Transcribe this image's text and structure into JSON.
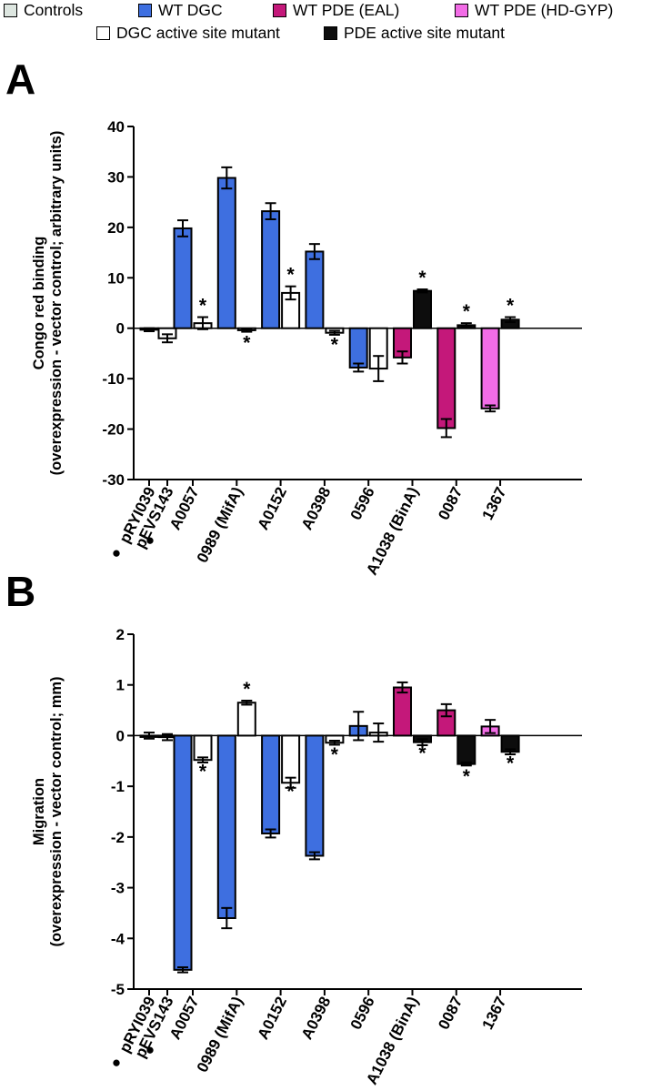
{
  "legend": [
    {
      "label": "Controls",
      "color": "#dde6e0"
    },
    {
      "label": "WT DGC",
      "color": "#3e6fe0"
    },
    {
      "label": "WT PDE (EAL)",
      "color": "#c4187a"
    },
    {
      "label": "WT PDE (HD-GYP)",
      "color": "#f26ce6"
    },
    {
      "label": "DGC active site mutant",
      "color": "#ffffff"
    },
    {
      "label": "PDE active site mutant",
      "color": "#0d0d0d"
    }
  ],
  "colors": {
    "control": "#dde6e0",
    "wt_dgc": "#3e6fe0",
    "wt_pde_eal": "#c4187a",
    "wt_pde_hdgyp": "#f26ce6",
    "dgc_mutant": "#ffffff",
    "pde_mutant": "#0d0d0d"
  },
  "chart_data": [
    {
      "panel": "A",
      "type": "bar",
      "ylabel_line1": "Congo red binding",
      "ylabel_line2": "(overexpression - vector control; arbitrary units)",
      "ylim": [
        -30,
        40
      ],
      "yticks": [
        -30,
        -20,
        -10,
        0,
        10,
        20,
        30,
        40
      ],
      "categories": [
        "pRYI039",
        "pEVS143",
        "A0057",
        "0989 (MifA)",
        "A0152",
        "A0398",
        "0596",
        "A1038 (BinA)",
        "0087",
        "1367"
      ],
      "control_markers": [
        "●",
        "●"
      ],
      "bars": [
        {
          "category": "pRYI039",
          "kind": "control",
          "value": -0.3,
          "error": 0.3,
          "star": false
        },
        {
          "category": "pEVS143",
          "kind": "dgc_mutant",
          "value": -2.0,
          "error": 0.8,
          "star": false
        },
        {
          "category": "A0057",
          "kind": "wt_dgc",
          "value": 19.8,
          "error": 1.6,
          "star": false
        },
        {
          "category": "A0057",
          "kind": "dgc_mutant",
          "value": 1.0,
          "error": 1.2,
          "star": true
        },
        {
          "category": "0989 (MifA)",
          "kind": "wt_dgc",
          "value": 29.8,
          "error": 2.1,
          "star": false
        },
        {
          "category": "0989 (MifA)",
          "kind": "dgc_mutant",
          "value": -0.4,
          "error": 0.3,
          "star": true
        },
        {
          "category": "A0152",
          "kind": "wt_dgc",
          "value": 23.2,
          "error": 1.6,
          "star": false
        },
        {
          "category": "A0152",
          "kind": "dgc_mutant",
          "value": 7.0,
          "error": 1.3,
          "star": true
        },
        {
          "category": "A0398",
          "kind": "wt_dgc",
          "value": 15.2,
          "error": 1.5,
          "star": false
        },
        {
          "category": "A0398",
          "kind": "dgc_mutant",
          "value": -0.9,
          "error": 0.4,
          "star": true
        },
        {
          "category": "0596",
          "kind": "wt_dgc",
          "value": -7.8,
          "error": 0.8,
          "star": false
        },
        {
          "category": "0596",
          "kind": "dgc_mutant",
          "value": -8.0,
          "error": 2.5,
          "star": false
        },
        {
          "category": "A1038 (BinA)",
          "kind": "wt_pde_eal",
          "value": -5.8,
          "error": 1.2,
          "star": false
        },
        {
          "category": "A1038 (BinA)",
          "kind": "pde_mutant",
          "value": 7.4,
          "error": 0.3,
          "star": true
        },
        {
          "category": "0087",
          "kind": "wt_pde_eal",
          "value": -19.8,
          "error": 1.8,
          "star": false
        },
        {
          "category": "0087",
          "kind": "pde_mutant",
          "value": 0.6,
          "error": 0.4,
          "star": true
        },
        {
          "category": "1367",
          "kind": "wt_pde_hdgyp",
          "value": -15.9,
          "error": 0.6,
          "star": false
        },
        {
          "category": "1367",
          "kind": "pde_mutant",
          "value": 1.7,
          "error": 0.5,
          "star": true
        }
      ]
    },
    {
      "panel": "B",
      "type": "bar",
      "ylabel_line1": "Migration",
      "ylabel_line2": "(overexpression - vector control; mm)",
      "ylim": [
        -5,
        2
      ],
      "yticks": [
        -5,
        -4,
        -3,
        -2,
        -1,
        0,
        1,
        2
      ],
      "categories": [
        "pRYI039",
        "pEVS143",
        "A0057",
        "0989 (MifA)",
        "A0152",
        "A0398",
        "0596",
        "A1038 (BinA)",
        "0087",
        "1367"
      ],
      "control_markers": [
        "●",
        "●"
      ],
      "bars": [
        {
          "category": "pRYI039",
          "kind": "control",
          "value": 0.0,
          "error": 0.06,
          "star": false
        },
        {
          "category": "pEVS143",
          "kind": "dgc_mutant",
          "value": -0.03,
          "error": 0.06,
          "star": false
        },
        {
          "category": "A0057",
          "kind": "wt_dgc",
          "value": -4.62,
          "error": 0.05,
          "star": false
        },
        {
          "category": "A0057",
          "kind": "dgc_mutant",
          "value": -0.48,
          "error": 0.05,
          "star": true
        },
        {
          "category": "0989 (MifA)",
          "kind": "wt_dgc",
          "value": -3.6,
          "error": 0.2,
          "star": false
        },
        {
          "category": "0989 (MifA)",
          "kind": "dgc_mutant",
          "value": 0.65,
          "error": 0.04,
          "star": true
        },
        {
          "category": "A0152",
          "kind": "wt_dgc",
          "value": -1.93,
          "error": 0.08,
          "star": false
        },
        {
          "category": "A0152",
          "kind": "dgc_mutant",
          "value": -0.93,
          "error": 0.1,
          "star": true
        },
        {
          "category": "A0398",
          "kind": "wt_dgc",
          "value": -2.37,
          "error": 0.07,
          "star": false
        },
        {
          "category": "A0398",
          "kind": "dgc_mutant",
          "value": -0.14,
          "error": 0.04,
          "star": true
        },
        {
          "category": "0596",
          "kind": "wt_dgc",
          "value": 0.19,
          "error": 0.28,
          "star": false
        },
        {
          "category": "0596",
          "kind": "dgc_mutant",
          "value": 0.06,
          "error": 0.18,
          "star": false
        },
        {
          "category": "A1038 (BinA)",
          "kind": "wt_pde_eal",
          "value": 0.95,
          "error": 0.1,
          "star": false
        },
        {
          "category": "A1038 (BinA)",
          "kind": "pde_mutant",
          "value": -0.13,
          "error": 0.06,
          "star": true
        },
        {
          "category": "0087",
          "kind": "wt_pde_eal",
          "value": 0.5,
          "error": 0.12,
          "star": false
        },
        {
          "category": "0087",
          "kind": "pde_mutant",
          "value": -0.56,
          "error": 0.03,
          "star": true
        },
        {
          "category": "1367",
          "kind": "wt_pde_hdgyp",
          "value": 0.18,
          "error": 0.13,
          "star": false
        },
        {
          "category": "1367",
          "kind": "pde_mutant",
          "value": -0.32,
          "error": 0.05,
          "star": true
        }
      ]
    }
  ]
}
